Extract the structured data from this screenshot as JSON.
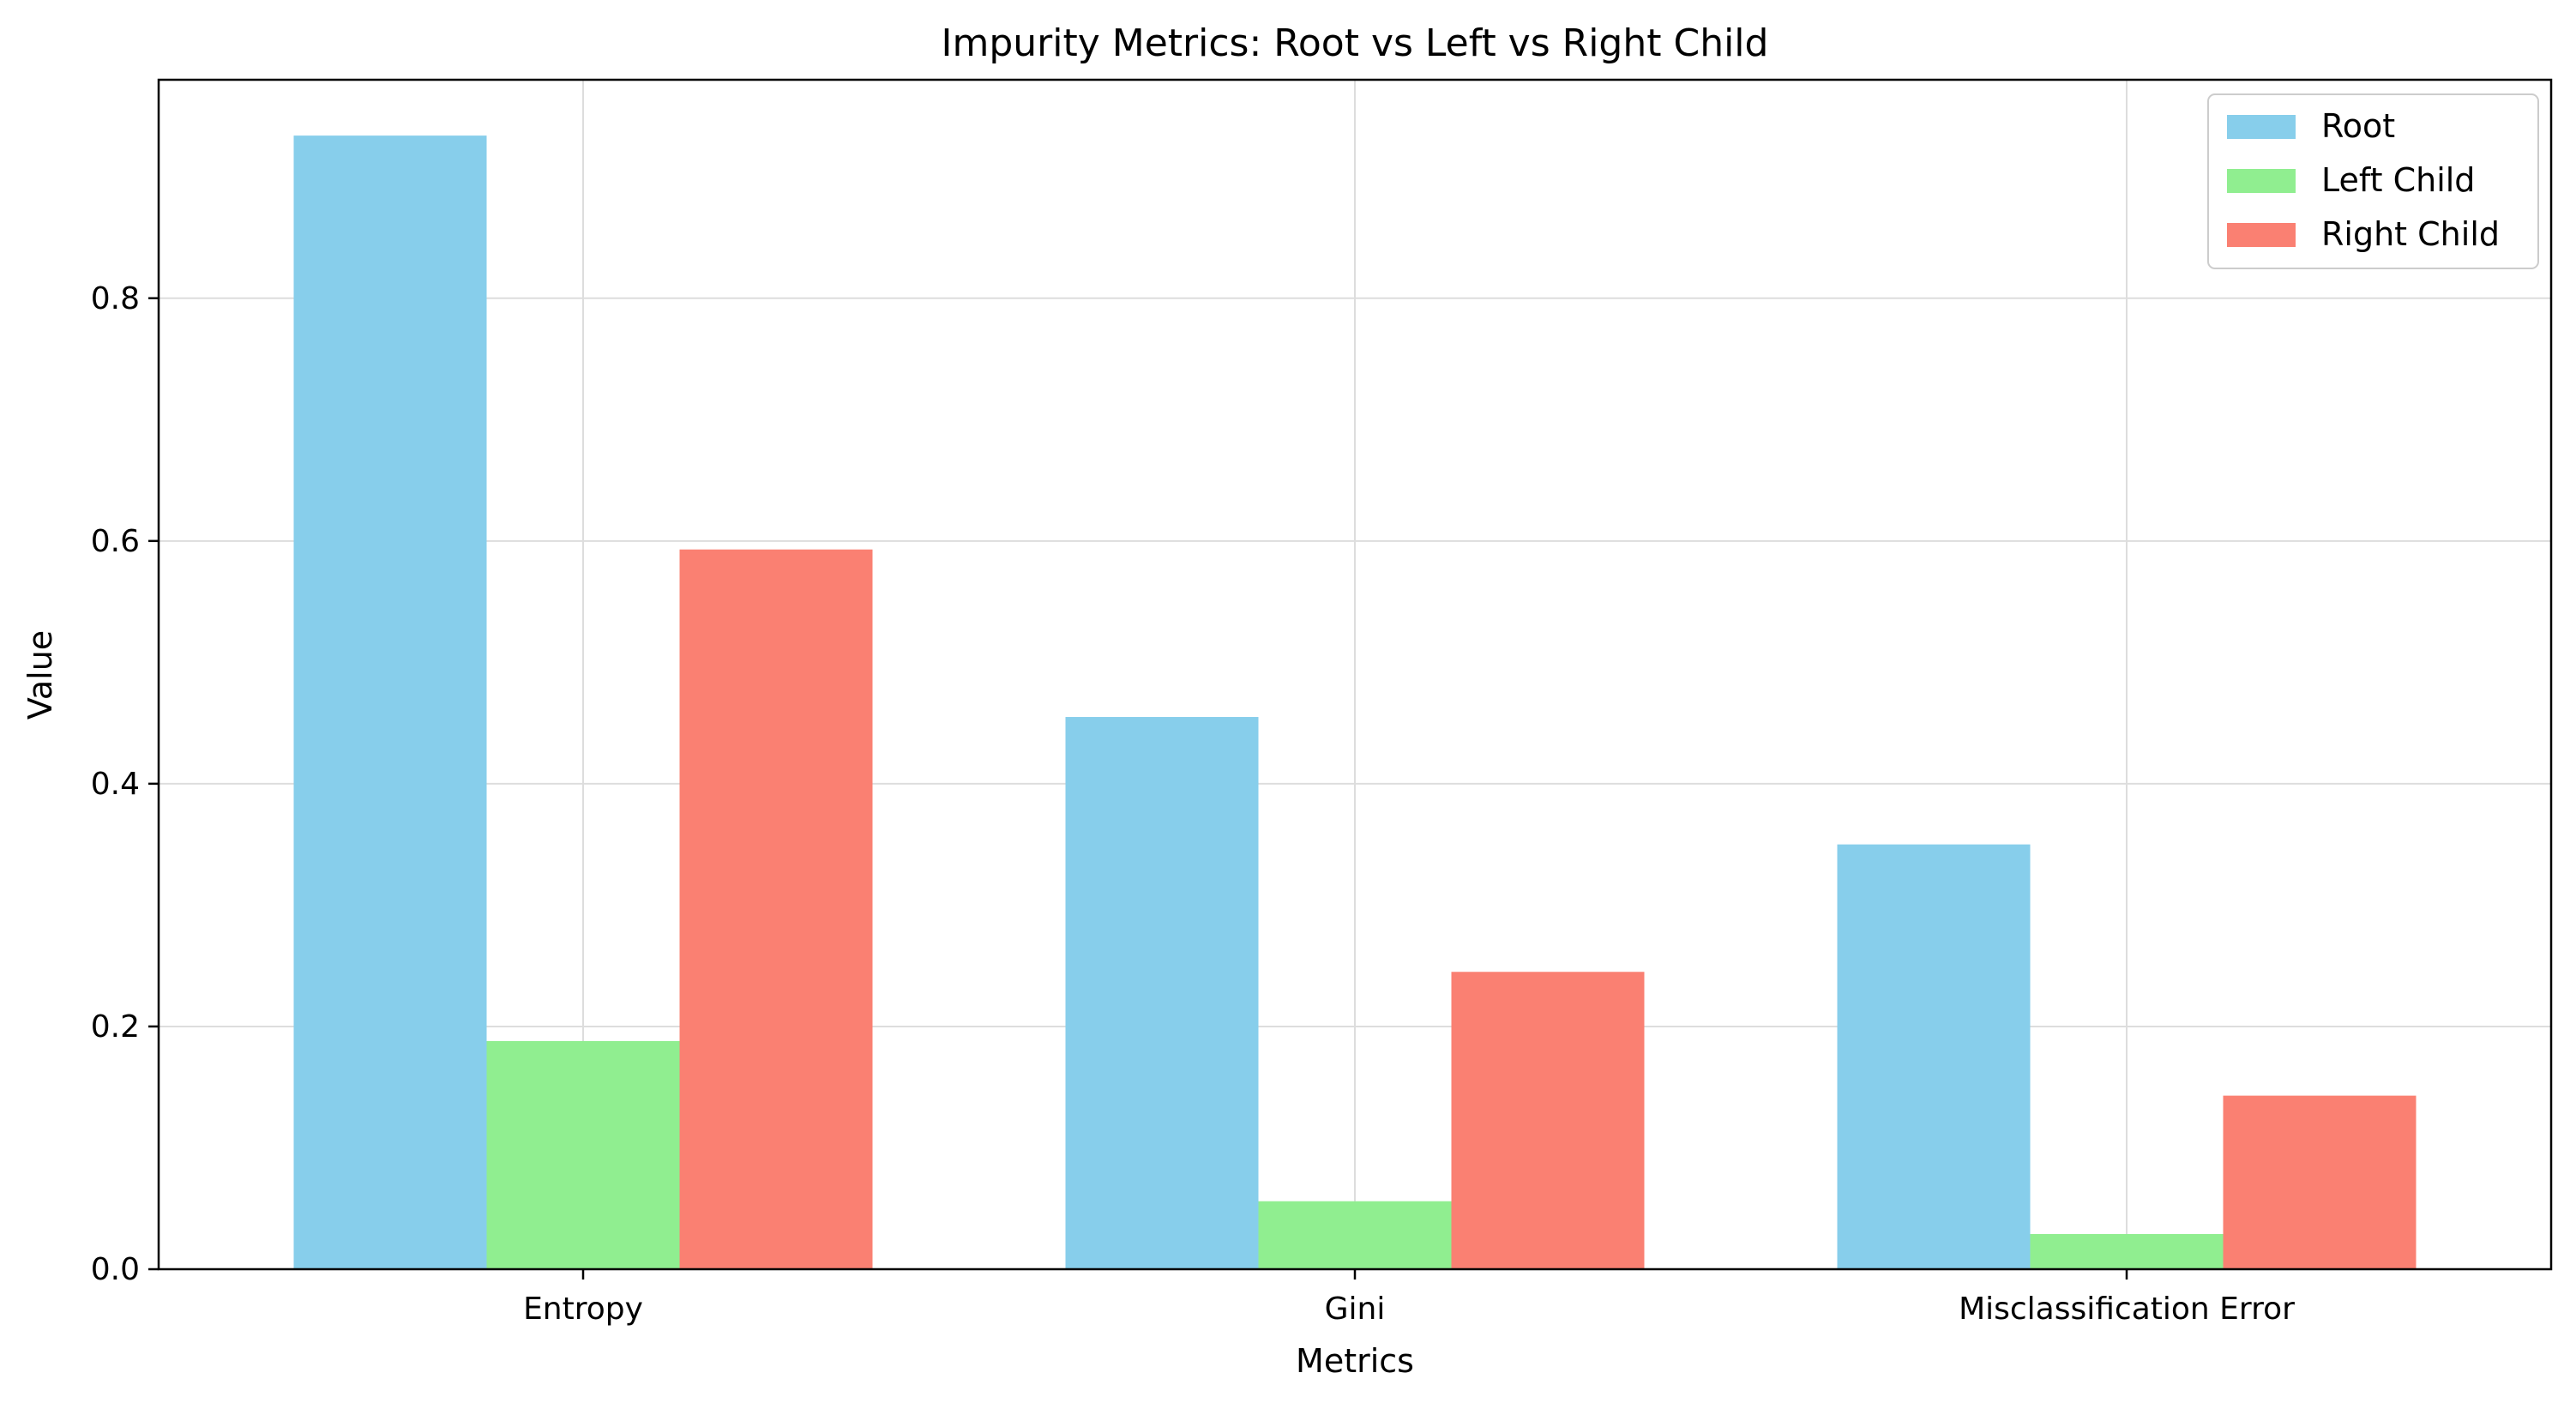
{
  "chart_data": {
    "type": "bar",
    "title": "Impurity Metrics: Root vs Left vs Right Child",
    "xlabel": "Metrics",
    "ylabel": "Value",
    "categories": [
      "Entropy",
      "Gini",
      "Misclassification Error"
    ],
    "series": [
      {
        "name": "Root",
        "color": "#87CEEB",
        "values": [
          0.934,
          0.455,
          0.35
        ]
      },
      {
        "name": "Left Child",
        "color": "#90EE90",
        "values": [
          0.188,
          0.056,
          0.029
        ]
      },
      {
        "name": "Right Child",
        "color": "#FA8072",
        "values": [
          0.593,
          0.245,
          0.143
        ]
      }
    ],
    "ylim": [
      0,
      0.98
    ],
    "yticks": [
      0.0,
      0.2,
      0.4,
      0.6,
      0.8
    ],
    "ytick_labels": [
      "0.0",
      "0.2",
      "0.4",
      "0.6",
      "0.8"
    ],
    "grid": true,
    "legend_position": "top-right"
  }
}
